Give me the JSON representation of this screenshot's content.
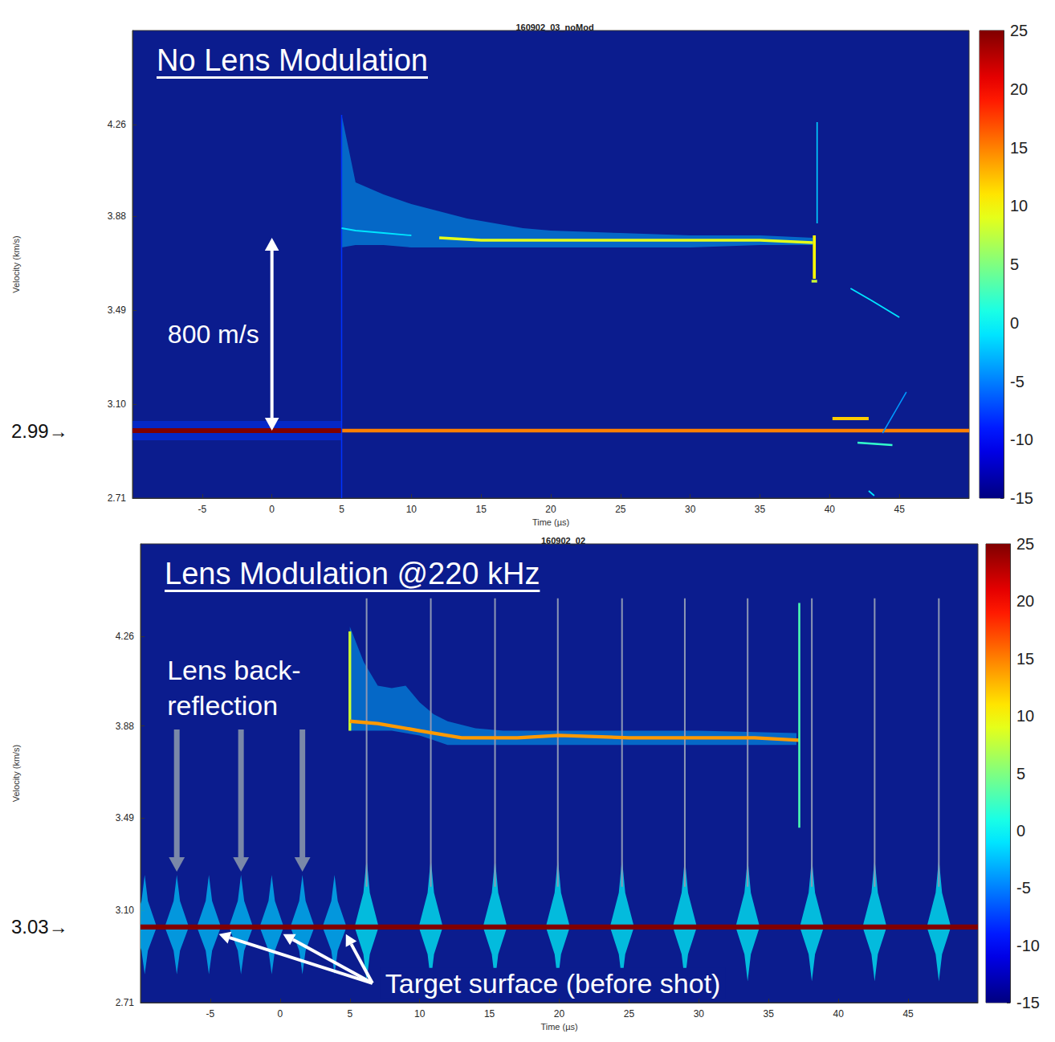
{
  "chart_data": [
    {
      "type": "heatmap",
      "title": "160902_03_noMod",
      "heading": "No Lens Modulation",
      "x_label": "Time (µs)",
      "y_label": "Velocity (km/s)",
      "xlim": [
        -10,
        50
      ],
      "xticks": [
        -5,
        0,
        5,
        10,
        15,
        20,
        25,
        30,
        35,
        40,
        45
      ],
      "ylim": [
        2.71,
        4.65
      ],
      "yticks": [
        2.71,
        {
          "value": 3.1,
          "label": "3.10"
        },
        3.49,
        3.88,
        4.26
      ],
      "color_range": [
        -15,
        25
      ],
      "color_ticks": [
        -15,
        -10,
        -5,
        0,
        5,
        10,
        15,
        20,
        25
      ],
      "marked_value": {
        "value": 2.99,
        "label": "2.99→"
      },
      "span": {
        "text": "800 m/s",
        "x": 0,
        "y": [
          2.99,
          3.79
        ]
      },
      "bands": [
        {
          "x": [
            -10,
            5
          ],
          "low": [
            2.95,
            2.95
          ],
          "high": [
            3.03,
            3.03
          ],
          "intensity": -8
        },
        {
          "x": [
            5,
            6,
            8,
            10,
            12,
            14,
            16,
            18,
            20,
            25,
            30,
            35,
            38.8
          ],
          "low": [
            3.75,
            3.76,
            3.76,
            3.75,
            3.75,
            3.75,
            3.75,
            3.75,
            3.75,
            3.75,
            3.75,
            3.76,
            3.76
          ],
          "high": [
            4.3,
            4.02,
            3.97,
            3.93,
            3.9,
            3.87,
            3.85,
            3.83,
            3.82,
            3.81,
            3.8,
            3.8,
            3.79
          ],
          "intensity": -3
        }
      ],
      "traces": [
        {
          "x": [
            -10,
            5
          ],
          "y": [
            2.99,
            2.99
          ],
          "intensity": 25
        },
        {
          "x": [
            5,
            50
          ],
          "y": [
            2.99,
            2.99
          ],
          "intensity": 15
        },
        {
          "x": [
            5,
            5
          ],
          "y": [
            2.71,
            4.3
          ],
          "intensity": -8
        },
        {
          "x": [
            5,
            6,
            8,
            10
          ],
          "y": [
            3.83,
            3.82,
            3.81,
            3.8
          ],
          "intensity": -1
        },
        {
          "x": [
            12,
            15,
            20,
            25,
            30,
            35,
            38.8
          ],
          "y": [
            3.79,
            3.78,
            3.78,
            3.78,
            3.78,
            3.78,
            3.77
          ],
          "intensity": 9
        },
        {
          "x": [
            38.9,
            38.9
          ],
          "y": [
            3.62,
            3.8
          ],
          "intensity": 10
        },
        {
          "x": [
            39.1,
            39.1
          ],
          "y": [
            3.85,
            4.27
          ],
          "intensity": -2
        },
        {
          "x": [
            38.7,
            39.1
          ],
          "y": [
            3.61,
            3.61
          ],
          "intensity": 8
        },
        {
          "x": [
            41.5,
            43,
            45
          ],
          "y": [
            3.58,
            3.53,
            3.46
          ],
          "intensity": -1
        },
        {
          "x": [
            40.2,
            42.8
          ],
          "y": [
            3.04,
            3.04
          ],
          "intensity": 12
        },
        {
          "x": [
            42,
            44.5
          ],
          "y": [
            2.94,
            2.93
          ],
          "intensity": 2
        },
        {
          "x": [
            42.8,
            43.2
          ],
          "y": [
            2.74,
            2.72
          ],
          "intensity": -1
        },
        {
          "x": [
            43.8,
            44.5,
            45.5
          ],
          "y": [
            2.98,
            3.05,
            3.15
          ],
          "intensity": -4
        }
      ]
    },
    {
      "type": "heatmap",
      "title": "160902_02",
      "heading": "Lens Modulation @220 kHz",
      "x_label": "Time (µs)",
      "y_label": "Velocity (km/s)",
      "xlim": [
        -10,
        50
      ],
      "xticks": [
        -5,
        0,
        5,
        10,
        15,
        20,
        25,
        30,
        35,
        40,
        45
      ],
      "ylim": [
        2.71,
        4.65
      ],
      "yticks": [
        2.71,
        {
          "value": 3.1,
          "label": "3.10"
        },
        3.49,
        3.88,
        4.26
      ],
      "color_range": [
        -15,
        25
      ],
      "color_ticks": [
        -15,
        -10,
        -5,
        0,
        5,
        10,
        15,
        20,
        25
      ],
      "marked_value": {
        "value": 3.03,
        "label": "3.03→"
      },
      "bands": [
        {
          "x": [
            5,
            6,
            7,
            8,
            9,
            10,
            11,
            12,
            14,
            16,
            20,
            30,
            37
          ],
          "low": [
            3.86,
            3.86,
            3.86,
            3.86,
            3.85,
            3.84,
            3.82,
            3.8,
            3.8,
            3.8,
            3.8,
            3.8,
            3.8
          ],
          "high": [
            4.3,
            4.15,
            4.05,
            4.04,
            4.05,
            3.98,
            3.93,
            3.9,
            3.87,
            3.86,
            3.86,
            3.86,
            3.85
          ],
          "intensity": -3
        }
      ],
      "bursts": [
        {
          "x": [
            -9.7,
            -7.4,
            -5.1,
            -2.8,
            -0.6,
            1.6,
            3.9
          ],
          "low": 2.83,
          "center": 3.03,
          "high": 3.25,
          "intensity": -2
        },
        {
          "x": [
            6.2,
            10.8,
            15.4,
            19.9,
            24.5,
            29,
            33.5,
            38.1,
            42.6,
            47.2
          ],
          "low": 2.8,
          "center": 3.03,
          "high": 3.32,
          "intensity": 0
        }
      ],
      "modulation_lines": {
        "x": [
          6.2,
          10.8,
          15.4,
          19.9,
          24.5,
          29,
          33.5,
          38.1,
          42.6,
          47.2
        ],
        "y": [
          3.2,
          4.42
        ]
      },
      "traces": [
        {
          "x": [
            -10,
            50
          ],
          "y": [
            3.03,
            3.03
          ],
          "intensity": 25
        },
        {
          "x": [
            5,
            5
          ],
          "y": [
            3.86,
            4.28
          ],
          "intensity": 8
        },
        {
          "x": [
            5,
            7,
            10,
            13,
            17,
            20,
            25,
            30,
            34,
            37.2
          ],
          "y": [
            3.9,
            3.89,
            3.86,
            3.83,
            3.83,
            3.84,
            3.83,
            3.83,
            3.83,
            3.82
          ],
          "intensity": 14
        },
        {
          "x": [
            37.2,
            37.2
          ],
          "y": [
            3.45,
            4.4
          ],
          "intensity": 3
        }
      ],
      "callouts": [
        {
          "text": "Lens back-reflection",
          "x": [
            -7.4,
            -2.8,
            1.6
          ],
          "y": 3.25
        },
        {
          "text": "Target surface (before shot)",
          "x": [
            -4.5,
            0.1,
            4.6
          ],
          "y": 3.03
        }
      ]
    }
  ]
}
